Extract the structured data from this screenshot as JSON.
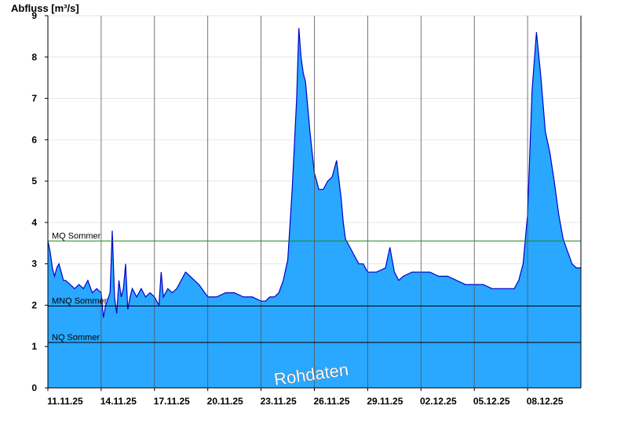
{
  "chart_data": {
    "type": "area",
    "ylabel": "Abfluss [m³/s]",
    "ylim": [
      0,
      9
    ],
    "yticks": [
      0,
      1,
      2,
      3,
      4,
      5,
      6,
      7,
      8,
      9
    ],
    "xlim": [
      "2025-11-11",
      "2025-12-11"
    ],
    "xticks": [
      "11.11.25",
      "14.11.25",
      "17.11.25",
      "20.11.25",
      "23.11.25",
      "26.11.25",
      "29.11.25",
      "02.12.25",
      "05.12.25",
      "08.12.25"
    ],
    "watermark": "Rohdaten",
    "colors": {
      "fill": "#2aa7ff",
      "line": "#0000cc",
      "mq": "#1a8a1a",
      "ref": "#000000",
      "vgrid": "#555555"
    },
    "reference_lines": [
      {
        "name": "MQ Sommer",
        "value": 3.55
      },
      {
        "name": "MNQ Sommer",
        "value": 1.98
      },
      {
        "name": "NQ Sommer",
        "value": 1.1
      }
    ],
    "series": [
      {
        "x": [
          "11.11. 00:00",
          "11.11. 03:00",
          "11.11. 06:00",
          "11.11. 09:00",
          "11.11. 12:00",
          "11.11. 15:00",
          "11.11. 18:00",
          "11.11. 21:00",
          "12.11. 00:00",
          "12.11. 06:00",
          "12.11. 12:00",
          "12.11. 18:00",
          "13.11. 00:00",
          "13.11. 06:00",
          "13.11. 12:00",
          "13.11. 18:00",
          "14.11. 00:00",
          "14.11. 03:00",
          "14.11. 06:00",
          "14.11. 12:00",
          "14.11. 15:00",
          "14.11. 18:00",
          "14.11. 21:00",
          "15.11. 00:00",
          "15.11. 03:00",
          "15.11. 06:00",
          "15.11. 09:00",
          "15.11. 12:00",
          "15.11. 15:00",
          "15.11. 18:00",
          "16.11. 00:00",
          "16.11. 06:00",
          "16.11. 12:00",
          "16.11. 18:00",
          "17.11. 00:00",
          "17.11. 06:00",
          "17.11. 09:00",
          "17.11. 12:00",
          "17.11. 18:00",
          "18.11. 00:00",
          "18.11. 06:00",
          "18.11. 12:00",
          "18.11. 18:00",
          "19.11. 00:00",
          "19.11. 12:00",
          "20.11. 00:00",
          "20.11. 12:00",
          "21.11. 00:00",
          "21.11. 12:00",
          "22.11. 00:00",
          "22.11. 12:00",
          "23.11. 00:00",
          "23.11. 06:00",
          "23.11. 12:00",
          "23.11. 18:00",
          "24.11. 00:00",
          "24.11. 06:00",
          "24.11. 12:00",
          "24.11. 18:00",
          "25.11. 00:00",
          "25.11. 03:00",
          "25.11. 06:00",
          "25.11. 09:00",
          "25.11. 12:00",
          "25.11. 15:00",
          "25.11. 18:00",
          "26.11. 00:00",
          "26.11. 06:00",
          "26.11. 12:00",
          "26.11. 18:00",
          "27.11. 00:00",
          "27.11. 06:00",
          "27.11. 12:00",
          "27.11. 15:00",
          "27.11. 18:00",
          "28.11. 00:00",
          "28.11. 06:00",
          "28.11. 12:00",
          "28.11. 18:00",
          "29.11. 00:00",
          "29.11. 12:00",
          "30.11. 00:00",
          "30.11. 06:00",
          "30.11. 12:00",
          "30.11. 18:00",
          "01.12. 00:00",
          "01.12. 12:00",
          "02.12. 00:00",
          "02.12. 12:00",
          "03.12. 00:00",
          "03.12. 12:00",
          "04.12. 00:00",
          "04.12. 12:00",
          "05.12. 00:00",
          "05.12. 12:00",
          "06.12. 00:00",
          "06.12. 12:00",
          "07.12. 00:00",
          "07.12. 06:00",
          "07.12. 12:00",
          "07.12. 18:00",
          "08.12. 00:00",
          "08.12. 06:00",
          "08.12. 12:00",
          "08.12. 18:00",
          "09.12. 00:00",
          "09.12. 06:00",
          "09.12. 12:00",
          "09.12. 18:00",
          "10.12. 00:00",
          "10.12. 06:00",
          "10.12. 12:00",
          "10.12. 18:00",
          "11.12. 00:00"
        ],
        "values": [
          3.55,
          3.3,
          2.9,
          2.7,
          2.9,
          3.0,
          2.8,
          2.6,
          2.6,
          2.5,
          2.4,
          2.5,
          2.4,
          2.6,
          2.3,
          2.4,
          2.3,
          1.7,
          2.0,
          2.3,
          3.8,
          2.2,
          1.8,
          2.6,
          2.2,
          2.4,
          3.0,
          1.9,
          2.2,
          2.4,
          2.2,
          2.4,
          2.2,
          2.3,
          2.2,
          2.0,
          2.8,
          2.2,
          2.4,
          2.3,
          2.4,
          2.6,
          2.8,
          2.7,
          2.5,
          2.2,
          2.2,
          2.3,
          2.3,
          2.2,
          2.2,
          2.1,
          2.1,
          2.2,
          2.2,
          2.3,
          2.6,
          3.1,
          4.8,
          7.0,
          8.7,
          8.0,
          7.6,
          7.4,
          6.8,
          6.2,
          5.2,
          4.8,
          4.8,
          5.0,
          5.1,
          5.5,
          4.6,
          4.0,
          3.6,
          3.4,
          3.2,
          3.0,
          3.0,
          2.8,
          2.8,
          2.9,
          3.4,
          2.8,
          2.6,
          2.7,
          2.8,
          2.8,
          2.8,
          2.7,
          2.7,
          2.6,
          2.5,
          2.5,
          2.5,
          2.4,
          2.4,
          2.4,
          2.4,
          2.6,
          3.0,
          4.2,
          7.2,
          8.6,
          7.5,
          6.2,
          5.7,
          5.0,
          4.2,
          3.6,
          3.3,
          3.0,
          2.9,
          2.9
        ]
      }
    ]
  }
}
